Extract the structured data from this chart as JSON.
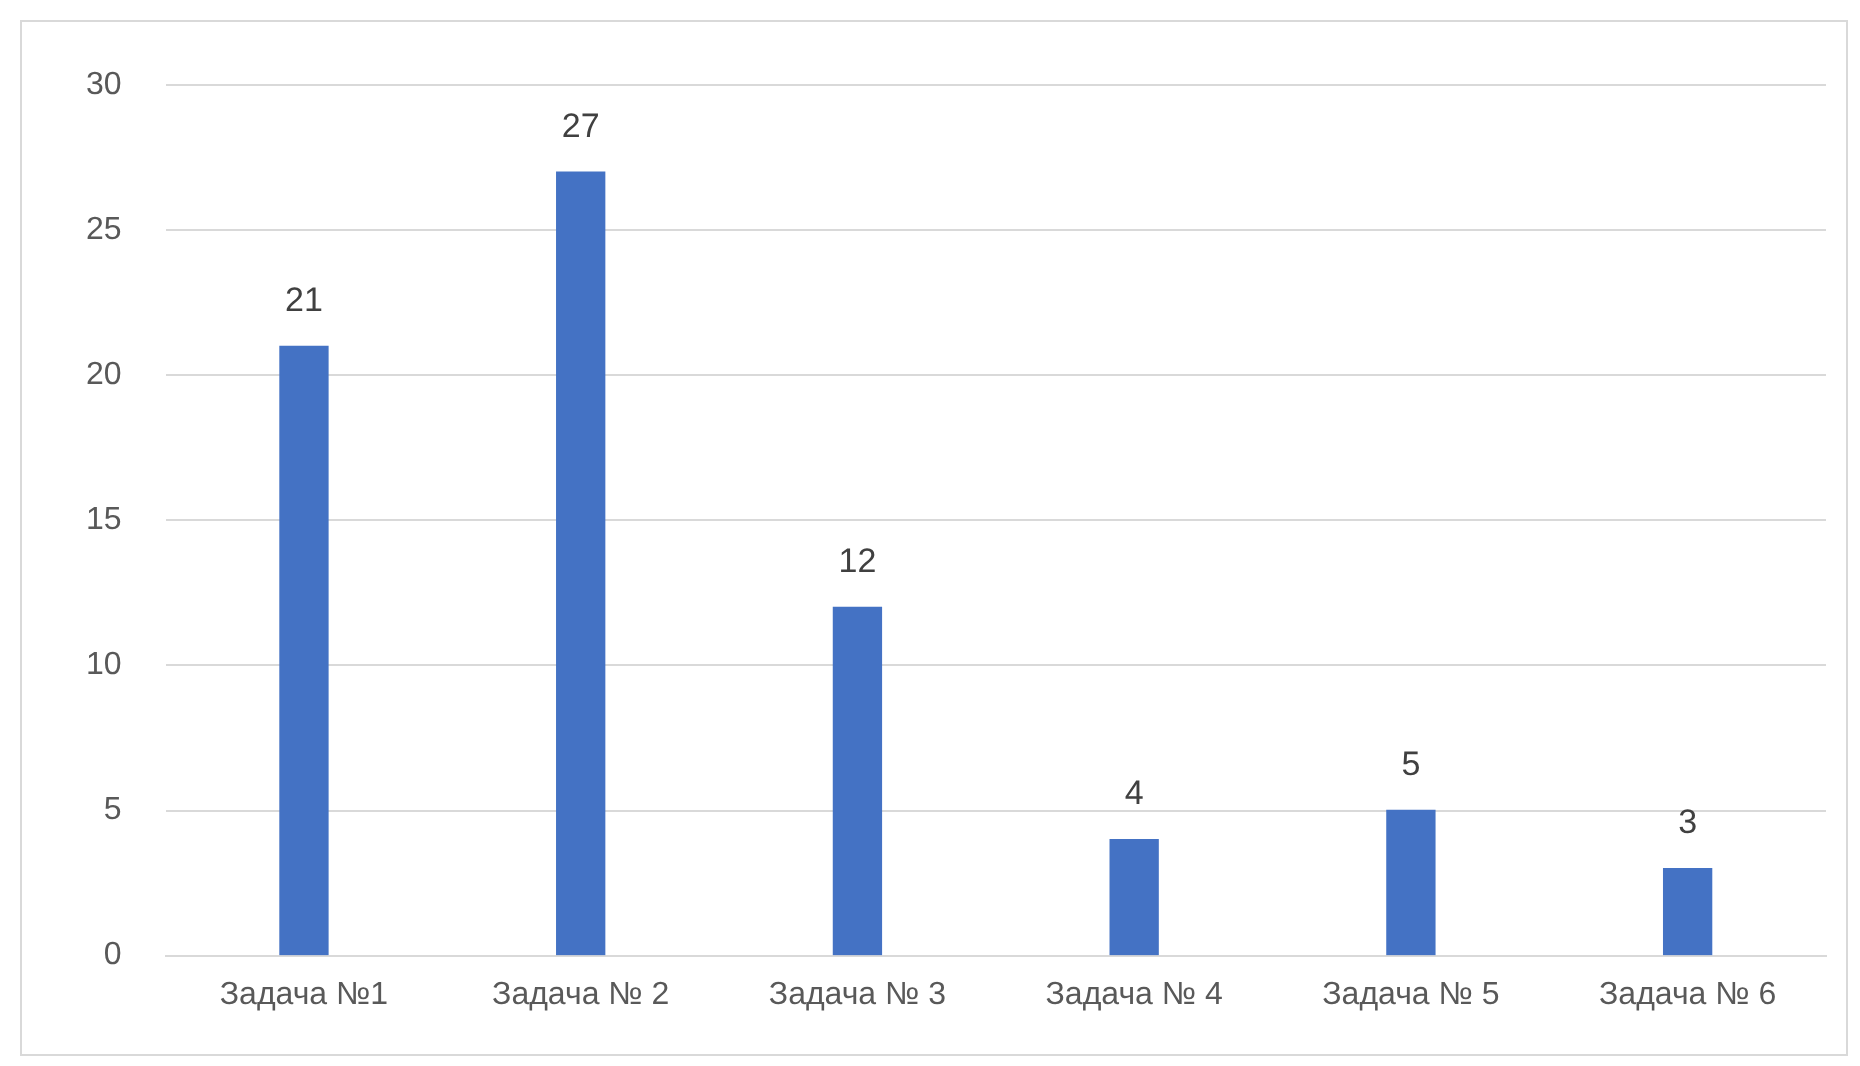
{
  "chart_data": {
    "type": "bar",
    "categories": [
      "Задача №1",
      "Задача № 2",
      "Задача № 3",
      "Задача № 4",
      "Задача № 5",
      "Задача № 6"
    ],
    "values": [
      21,
      27,
      12,
      4,
      5,
      3
    ],
    "color": "#4472c4",
    "ylim": [
      0,
      30
    ],
    "yticks": [
      0,
      5,
      10,
      15,
      20,
      25,
      30
    ],
    "grid": "y",
    "data_labels": true,
    "legend": false
  }
}
